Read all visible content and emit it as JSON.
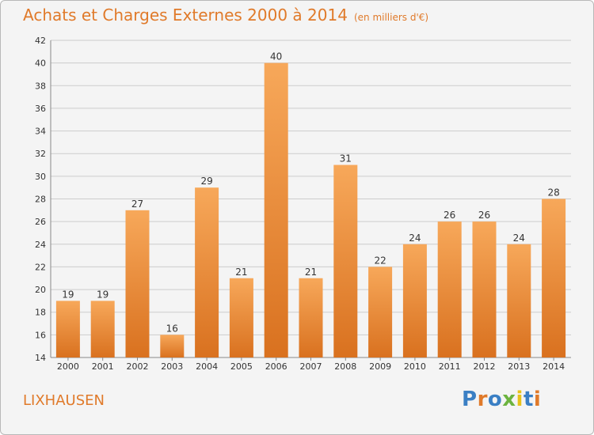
{
  "header": {
    "title": "Achats et Charges Externes 2000 à 2014",
    "subtitle": "(en milliers d'€)"
  },
  "footer": {
    "place": "LIXHAUSEN",
    "logo": "Proxiti"
  },
  "colors": {
    "accent": "#e07a2a",
    "bar_top": "#f7a85a",
    "bar_bottom": "#d9711f",
    "grid": "#cccccc",
    "axis_text": "#333333"
  },
  "logo_colors": [
    "#3a7fc4",
    "#e07a2a",
    "#3a7fc4",
    "#6cb33f",
    "#e8c21a",
    "#3a7fc4",
    "#e07a2a"
  ],
  "chart_data": {
    "type": "bar",
    "title": "Achats et Charges Externes 2000 à 2014",
    "subtitle": "(en milliers d'€)",
    "xlabel": "",
    "ylabel": "",
    "categories": [
      "2000",
      "2001",
      "2002",
      "2003",
      "2004",
      "2005",
      "2006",
      "2007",
      "2008",
      "2009",
      "2010",
      "2011",
      "2012",
      "2013",
      "2014"
    ],
    "values": [
      19,
      19,
      27,
      16,
      29,
      21,
      40,
      21,
      31,
      22,
      24,
      26,
      26,
      24,
      28
    ],
    "ylim": [
      14,
      42
    ],
    "yticks": [
      14,
      16,
      18,
      20,
      22,
      24,
      26,
      28,
      30,
      32,
      34,
      36,
      38,
      40,
      42
    ],
    "grid": true,
    "data_labels": true
  }
}
